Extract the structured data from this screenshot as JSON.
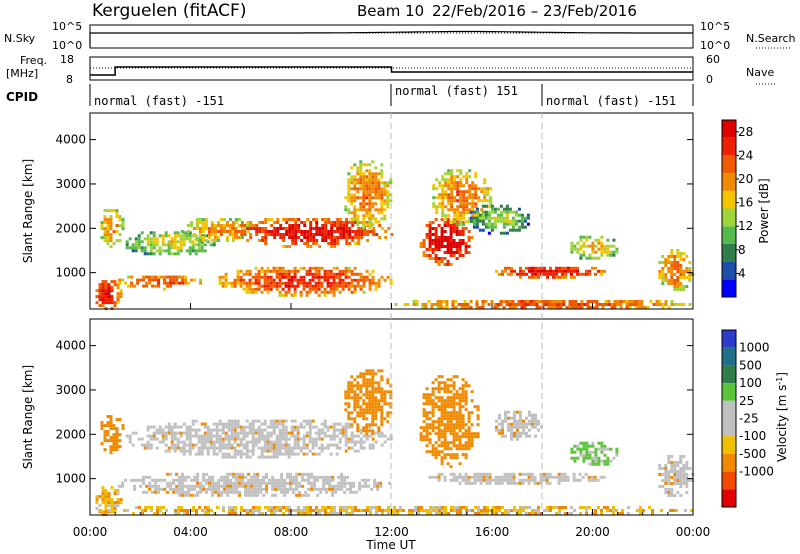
{
  "header": {
    "station": "Kerguelen (fitACF)",
    "beam": "Beam 10",
    "date_range": "22/Feb/2016 – 23/Feb/2016"
  },
  "sky_panel": {
    "left_label": "N.Sky",
    "right_label": "N.Search",
    "left_ticks": [
      "10^5",
      "10^0"
    ],
    "right_ticks": [
      "10^5",
      "10^0"
    ],
    "right_linestyle": "dotted"
  },
  "freq_panel": {
    "left_label_line1": "Freq.",
    "left_label_line2": "[MHz]",
    "right_label": "Nave",
    "left_ticks": [
      "18",
      "8"
    ],
    "right_ticks": [
      "60",
      "0"
    ],
    "right_linestyle": "dotted"
  },
  "cpid": {
    "label": "CPID",
    "segments": [
      {
        "start_hour": 0,
        "end_hour": 12,
        "label": "normal (fast) -151"
      },
      {
        "start_hour": 12,
        "end_hour": 18,
        "label": "normal (fast) 151"
      },
      {
        "start_hour": 18,
        "end_hour": 24,
        "label": "normal (fast) -151"
      }
    ]
  },
  "colors": {
    "power_scale": [
      "#0000ff",
      "#1d4fa8",
      "#2e7d4a",
      "#57b94b",
      "#9fd43a",
      "#f5c400",
      "#f08a00",
      "#f05a00",
      "#ee2200",
      "#dd0000"
    ],
    "velocity_scale": [
      "#2a3cc8",
      "#1f6f8a",
      "#2e7d4a",
      "#5cc43a",
      "#c0c0c0",
      "#c0c0c0",
      "#f0c000",
      "#f08a00",
      "#f04a00",
      "#e00000"
    ],
    "ground_scatter": "#c0c0c0"
  },
  "chart_data": [
    {
      "type": "heatmap",
      "name": "power",
      "xlabel": "",
      "ylabel": "Slant Range [km]",
      "xlim": [
        0,
        24
      ],
      "ylim": [
        180,
        4600
      ],
      "y_ticks": [
        "1000",
        "2000",
        "3000",
        "4000"
      ],
      "colorbar_label": "Power [dB]",
      "colorbar_ticks": [
        "4",
        "8",
        "12",
        "16",
        "20",
        "24",
        "28"
      ],
      "colorbar_range": [
        0,
        30
      ],
      "echo_regions": [
        {
          "start_hour": 0.1,
          "end_hour": 1.2,
          "range_min": 180,
          "range_max": 900,
          "dB": 24
        },
        {
          "start_hour": 0.3,
          "end_hour": 1.3,
          "range_min": 1600,
          "range_max": 2500,
          "dB": 16
        },
        {
          "start_hour": 1.3,
          "end_hour": 5.0,
          "range_min": 1400,
          "range_max": 2000,
          "dB": 12
        },
        {
          "start_hour": 1.0,
          "end_hour": 4.5,
          "range_min": 650,
          "range_max": 1000,
          "dB": 20
        },
        {
          "start_hour": 3.5,
          "end_hour": 6.5,
          "range_min": 1700,
          "range_max": 2300,
          "dB": 16
        },
        {
          "start_hour": 5.0,
          "end_hour": 12.0,
          "range_min": 500,
          "range_max": 1200,
          "dB": 22
        },
        {
          "start_hour": 5.5,
          "end_hour": 12.0,
          "range_min": 1600,
          "range_max": 2300,
          "dB": 24
        },
        {
          "start_hour": 10.0,
          "end_hour": 12.0,
          "range_min": 2000,
          "range_max": 3600,
          "dB": 18
        },
        {
          "start_hour": 13.0,
          "end_hour": 15.2,
          "range_min": 1200,
          "range_max": 2300,
          "dB": 26
        },
        {
          "start_hour": 13.5,
          "end_hour": 16.0,
          "range_min": 2100,
          "range_max": 3400,
          "dB": 18
        },
        {
          "start_hour": 15.0,
          "end_hour": 17.5,
          "range_min": 1900,
          "range_max": 2600,
          "dB": 10
        },
        {
          "start_hour": 16.0,
          "end_hour": 20.5,
          "range_min": 900,
          "range_max": 1200,
          "dB": 24
        },
        {
          "start_hour": 19.0,
          "end_hour": 21.0,
          "range_min": 1300,
          "range_max": 1900,
          "dB": 14
        },
        {
          "start_hour": 22.5,
          "end_hour": 24.0,
          "range_min": 600,
          "range_max": 1600,
          "dB": 18
        },
        {
          "start_hour": 12.0,
          "end_hour": 24.0,
          "range_min": 180,
          "range_max": 450,
          "dB": 20
        }
      ]
    },
    {
      "type": "heatmap",
      "name": "velocity",
      "xlabel": "Time UT",
      "ylabel": "Slant Range [km]",
      "xlim": [
        0,
        24
      ],
      "ylim": [
        180,
        4600
      ],
      "x_ticks": [
        "00:00",
        "04:00",
        "08:00",
        "12:00",
        "16:00",
        "20:00",
        "00:00"
      ],
      "y_ticks": [
        "1000",
        "2000",
        "3000",
        "4000"
      ],
      "colorbar_label": "Velocity [m s^-1]",
      "colorbar_ticks": [
        "1000",
        "500",
        "100",
        "25",
        "-25",
        "-100",
        "-500",
        "-1000"
      ],
      "echo_regions": [
        {
          "start_hour": 0.1,
          "end_hour": 1.2,
          "range_min": 180,
          "range_max": 900,
          "velocity": -100
        },
        {
          "start_hour": 0.3,
          "end_hour": 1.3,
          "range_min": 1600,
          "range_max": 2500,
          "velocity": -200
        },
        {
          "start_hour": 1.3,
          "end_hour": 12.0,
          "range_min": 1500,
          "range_max": 2400,
          "velocity": 0
        },
        {
          "start_hour": 1.0,
          "end_hour": 12.0,
          "range_min": 600,
          "range_max": 1200,
          "velocity": 0
        },
        {
          "start_hour": 10.0,
          "end_hour": 12.0,
          "range_min": 2000,
          "range_max": 3600,
          "velocity": -300
        },
        {
          "start_hour": 13.0,
          "end_hour": 15.5,
          "range_min": 1300,
          "range_max": 3400,
          "velocity": -300
        },
        {
          "start_hour": 13.0,
          "end_hour": 20.5,
          "range_min": 900,
          "range_max": 1200,
          "velocity": 0
        },
        {
          "start_hour": 16.0,
          "end_hour": 18.0,
          "range_min": 1900,
          "range_max": 2600,
          "velocity": 0
        },
        {
          "start_hour": 19.0,
          "end_hour": 21.0,
          "range_min": 1300,
          "range_max": 1900,
          "velocity": 150
        },
        {
          "start_hour": 22.5,
          "end_hour": 24.0,
          "range_min": 600,
          "range_max": 1600,
          "velocity": 0
        },
        {
          "start_hour": 0.0,
          "end_hour": 24.0,
          "range_min": 180,
          "range_max": 450,
          "velocity": -60
        }
      ]
    }
  ]
}
